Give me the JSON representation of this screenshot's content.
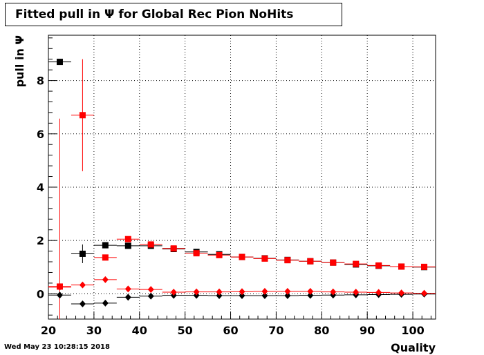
{
  "title": "Fitted pull in  Ψ  for Global Rec Pion NoHits",
  "footer": "Wed May 23 10:28:15 2018",
  "chart_data": {
    "type": "scatter",
    "title": "Fitted pull in  Ψ  for Global Rec Pion NoHits",
    "xlabel": "Quality",
    "ylabel": "pull in  Ψ",
    "xlim": [
      20,
      105
    ],
    "ylim": [
      -0.95,
      9.7
    ],
    "xticks": [
      20,
      30,
      40,
      50,
      60,
      70,
      80,
      90,
      100
    ],
    "yticks": [
      0,
      2,
      4,
      6,
      8
    ],
    "grid": true,
    "bin_halfwidth": 2.5,
    "series": [
      {
        "marker": "square",
        "color": "#000000",
        "points": [
          {
            "x": 22.5,
            "y": 8.7
          },
          {
            "x": 27.5,
            "y": 1.5,
            "err": 0.35
          },
          {
            "x": 32.5,
            "y": 1.82
          },
          {
            "x": 37.5,
            "y": 1.8
          },
          {
            "x": 42.5,
            "y": 1.8
          },
          {
            "x": 47.5,
            "y": 1.68
          },
          {
            "x": 52.5,
            "y": 1.57
          },
          {
            "x": 57.5,
            "y": 1.48
          },
          {
            "x": 62.5,
            "y": 1.38
          },
          {
            "x": 67.5,
            "y": 1.33
          },
          {
            "x": 72.5,
            "y": 1.27
          },
          {
            "x": 77.5,
            "y": 1.22
          },
          {
            "x": 82.5,
            "y": 1.17
          },
          {
            "x": 87.5,
            "y": 1.1
          },
          {
            "x": 92.5,
            "y": 1.05
          },
          {
            "x": 97.5,
            "y": 1.02
          },
          {
            "x": 102.5,
            "y": 1.0
          }
        ]
      },
      {
        "marker": "square",
        "color": "#ff0000",
        "points": [
          {
            "x": 22.5,
            "y": 0.27,
            "err": 6.3
          },
          {
            "x": 27.5,
            "y": 6.7,
            "err": 2.1
          },
          {
            "x": 32.5,
            "y": 1.36
          },
          {
            "x": 37.5,
            "y": 2.05
          },
          {
            "x": 42.5,
            "y": 1.85
          },
          {
            "x": 47.5,
            "y": 1.7
          },
          {
            "x": 52.5,
            "y": 1.52
          },
          {
            "x": 57.5,
            "y": 1.45
          },
          {
            "x": 62.5,
            "y": 1.38
          },
          {
            "x": 67.5,
            "y": 1.32
          },
          {
            "x": 72.5,
            "y": 1.26
          },
          {
            "x": 77.5,
            "y": 1.22
          },
          {
            "x": 82.5,
            "y": 1.17
          },
          {
            "x": 87.5,
            "y": 1.12
          },
          {
            "x": 92.5,
            "y": 1.06
          },
          {
            "x": 97.5,
            "y": 1.02
          },
          {
            "x": 102.5,
            "y": 1.01
          }
        ]
      },
      {
        "marker": "diamond",
        "color": "#000000",
        "points": [
          {
            "x": 22.5,
            "y": -0.05
          },
          {
            "x": 27.5,
            "y": -0.38
          },
          {
            "x": 32.5,
            "y": -0.35
          },
          {
            "x": 37.5,
            "y": -0.13
          },
          {
            "x": 42.5,
            "y": -0.09
          },
          {
            "x": 47.5,
            "y": -0.06
          },
          {
            "x": 52.5,
            "y": -0.06
          },
          {
            "x": 57.5,
            "y": -0.07
          },
          {
            "x": 62.5,
            "y": -0.07
          },
          {
            "x": 67.5,
            "y": -0.07
          },
          {
            "x": 72.5,
            "y": -0.07
          },
          {
            "x": 77.5,
            "y": -0.06
          },
          {
            "x": 82.5,
            "y": -0.05
          },
          {
            "x": 87.5,
            "y": -0.04
          },
          {
            "x": 92.5,
            "y": -0.03
          },
          {
            "x": 97.5,
            "y": -0.02
          },
          {
            "x": 102.5,
            "y": -0.01
          }
        ]
      },
      {
        "marker": "diamond",
        "color": "#ff0000",
        "points": [
          {
            "x": 22.5,
            "y": 0.25
          },
          {
            "x": 27.5,
            "y": 0.33
          },
          {
            "x": 32.5,
            "y": 0.53
          },
          {
            "x": 37.5,
            "y": 0.18
          },
          {
            "x": 42.5,
            "y": 0.16
          },
          {
            "x": 47.5,
            "y": 0.06
          },
          {
            "x": 52.5,
            "y": 0.07
          },
          {
            "x": 57.5,
            "y": 0.07
          },
          {
            "x": 62.5,
            "y": 0.08
          },
          {
            "x": 67.5,
            "y": 0.09
          },
          {
            "x": 72.5,
            "y": 0.09
          },
          {
            "x": 77.5,
            "y": 0.09
          },
          {
            "x": 82.5,
            "y": 0.07
          },
          {
            "x": 87.5,
            "y": 0.06
          },
          {
            "x": 92.5,
            "y": 0.05
          },
          {
            "x": 97.5,
            "y": 0.03
          },
          {
            "x": 102.5,
            "y": 0.02
          }
        ]
      }
    ]
  }
}
